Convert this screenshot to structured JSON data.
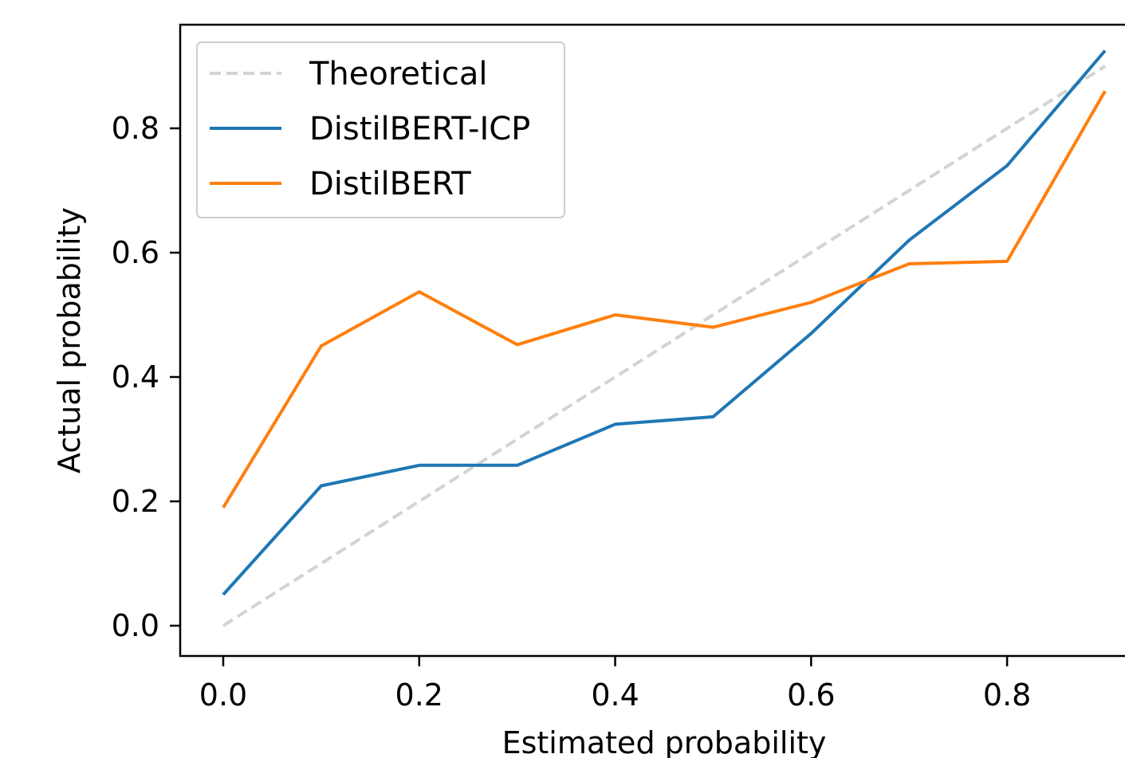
{
  "chart_data": {
    "type": "line",
    "title": "",
    "xlabel": "Estimated probability",
    "ylabel": "Actual probability",
    "x": [
      0.0,
      0.1,
      0.2,
      0.3,
      0.4,
      0.5,
      0.6,
      0.7,
      0.8,
      0.9
    ],
    "xlim": [
      -0.045,
      0.9
    ],
    "ylim": [
      -0.045,
      0.97
    ],
    "xticks": [
      0.0,
      0.2,
      0.4,
      0.6,
      0.8
    ],
    "yticks": [
      0.0,
      0.2,
      0.4,
      0.6,
      0.8
    ],
    "xtick_labels": [
      "0.0",
      "0.2",
      "0.4",
      "0.6",
      "0.8"
    ],
    "ytick_labels": [
      "0.0",
      "0.2",
      "0.4",
      "0.6",
      "0.8"
    ],
    "grid": false,
    "legend_position": "top-left",
    "series": [
      {
        "name": "Theoretical",
        "color": "#d3d3d3",
        "dash": true,
        "values": [
          0.0,
          0.1,
          0.2,
          0.3,
          0.4,
          0.5,
          0.6,
          0.7,
          0.8,
          0.9
        ]
      },
      {
        "name": "DistilBERT-ICP",
        "color": "#1f77b4",
        "dash": false,
        "values": [
          0.05,
          0.225,
          0.258,
          0.258,
          0.324,
          0.336,
          0.47,
          0.62,
          0.74,
          0.925
        ]
      },
      {
        "name": "DistilBERT",
        "color": "#ff7f0e",
        "dash": false,
        "values": [
          0.19,
          0.45,
          0.537,
          0.452,
          0.5,
          0.48,
          0.52,
          0.582,
          0.586,
          0.86
        ]
      }
    ]
  }
}
